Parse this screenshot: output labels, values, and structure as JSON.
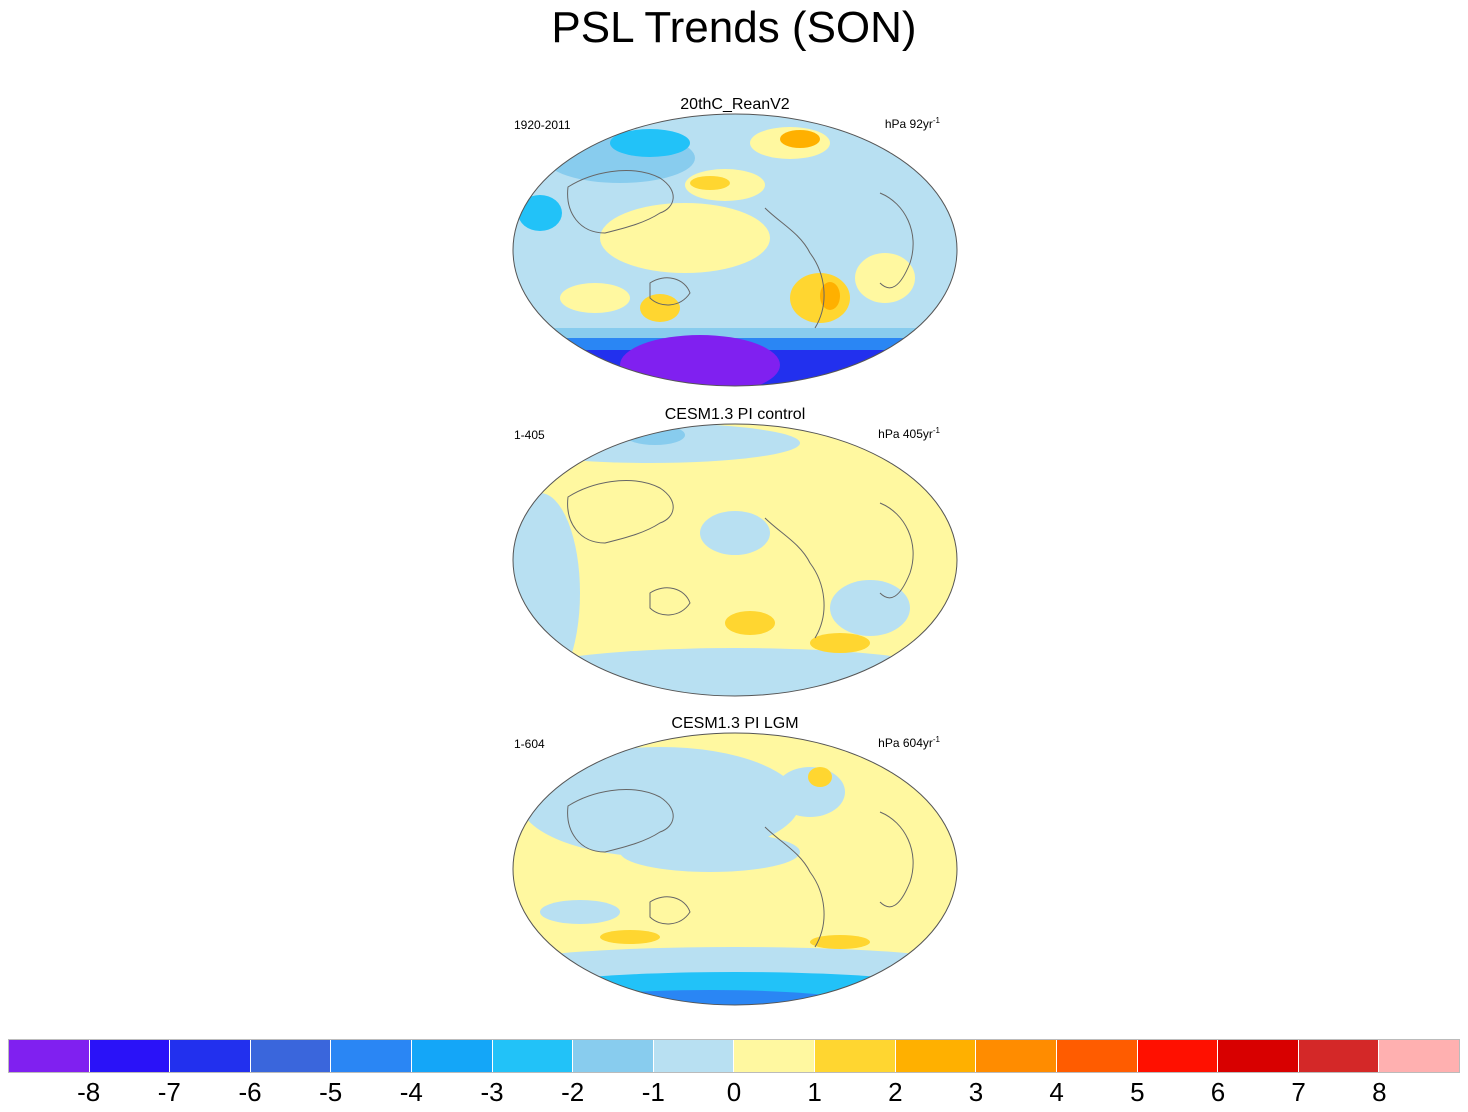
{
  "title": "PSL Trends (SON)",
  "panels": [
    {
      "title": "20thC_ReanV2",
      "left_label": "1920-2011",
      "units": "hPa 92yr",
      "units_exp": "-1"
    },
    {
      "title": "CESM1.3 PI control",
      "left_label": "1-405",
      "units": "hPa 405yr",
      "units_exp": "-1"
    },
    {
      "title": "CESM1.3 PI LGM",
      "left_label": "1-604",
      "units": "hPa 604yr",
      "units_exp": "-1"
    }
  ],
  "colorbar": {
    "colors": [
      "#8020f0",
      "#2a12f8",
      "#2230ee",
      "#3a66dc",
      "#2a86f4",
      "#14a6f8",
      "#22c2f8",
      "#88ccee",
      "#b8e0f2",
      "#fff8a0",
      "#ffd630",
      "#ffb000",
      "#ff8c00",
      "#ff5c00",
      "#ff1000",
      "#d80000",
      "#d42828",
      "#ffb0b0"
    ],
    "labels": [
      "-8",
      "-7",
      "-6",
      "-5",
      "-4",
      "-3",
      "-2",
      "-1",
      "0",
      "1",
      "2",
      "3",
      "4",
      "5",
      "6",
      "7",
      "8"
    ]
  },
  "icons": {
    "map": "world-map-icon"
  }
}
